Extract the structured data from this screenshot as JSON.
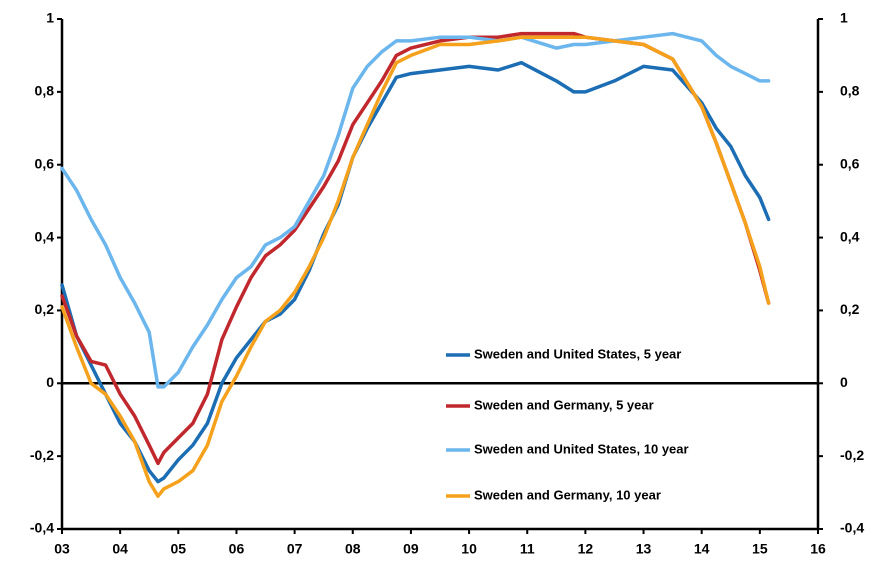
{
  "chart_data": {
    "type": "line",
    "x": [
      3,
      3.25,
      3.5,
      3.75,
      4,
      4.25,
      4.5,
      4.65,
      4.75,
      5,
      5.25,
      5.5,
      5.75,
      6,
      6.25,
      6.5,
      6.75,
      7,
      7.25,
      7.5,
      7.75,
      8,
      8.25,
      8.5,
      8.75,
      9,
      9.5,
      10,
      10.5,
      10.9,
      11.5,
      11.8,
      12,
      12.5,
      13,
      13.5,
      14,
      14.25,
      14.5,
      14.75,
      15,
      15.15
    ],
    "series": [
      {
        "name": "Sweden and United States, 5 year",
        "color": "#1b6db4",
        "values": [
          0.27,
          0.13,
          0.05,
          -0.03,
          -0.11,
          -0.16,
          -0.24,
          -0.27,
          -0.26,
          -0.21,
          -0.17,
          -0.11,
          0.0,
          0.07,
          0.12,
          0.17,
          0.19,
          0.23,
          0.31,
          0.41,
          0.49,
          0.62,
          0.7,
          0.77,
          0.84,
          0.85,
          0.86,
          0.87,
          0.86,
          0.88,
          0.83,
          0.8,
          0.8,
          0.83,
          0.87,
          0.86,
          0.77,
          0.7,
          0.65,
          0.57,
          0.51,
          0.45
        ]
      },
      {
        "name": "Sweden and Germany, 5 year",
        "color": "#c0282d",
        "values": [
          0.24,
          0.13,
          0.06,
          0.05,
          -0.03,
          -0.09,
          -0.17,
          -0.22,
          -0.19,
          -0.15,
          -0.11,
          -0.03,
          0.12,
          0.21,
          0.29,
          0.35,
          0.38,
          0.42,
          0.48,
          0.54,
          0.61,
          0.71,
          0.77,
          0.83,
          0.9,
          0.92,
          0.94,
          0.95,
          0.95,
          0.96,
          0.96,
          0.96,
          0.95,
          0.94,
          0.93,
          0.89,
          0.76,
          0.66,
          0.55,
          0.44,
          0.31,
          0.22
        ]
      },
      {
        "name": "Sweden and United States, 10 year",
        "color": "#6cb6ee",
        "values": [
          0.59,
          0.53,
          0.45,
          0.38,
          0.29,
          0.22,
          0.14,
          -0.01,
          -0.01,
          0.03,
          0.1,
          0.16,
          0.23,
          0.29,
          0.32,
          0.38,
          0.4,
          0.43,
          0.5,
          0.57,
          0.68,
          0.81,
          0.87,
          0.91,
          0.94,
          0.94,
          0.95,
          0.95,
          0.94,
          0.95,
          0.92,
          0.93,
          0.93,
          0.94,
          0.95,
          0.96,
          0.94,
          0.9,
          0.87,
          0.85,
          0.83,
          0.83
        ]
      },
      {
        "name": "Sweden and Germany, 10 year",
        "color": "#f5a11c",
        "values": [
          0.21,
          0.1,
          0.0,
          -0.03,
          -0.09,
          -0.16,
          -0.27,
          -0.31,
          -0.29,
          -0.27,
          -0.24,
          -0.17,
          -0.05,
          0.02,
          0.1,
          0.17,
          0.2,
          0.25,
          0.32,
          0.4,
          0.5,
          0.62,
          0.71,
          0.8,
          0.88,
          0.9,
          0.93,
          0.93,
          0.94,
          0.95,
          0.95,
          0.95,
          0.95,
          0.94,
          0.93,
          0.89,
          0.76,
          0.66,
          0.55,
          0.44,
          0.32,
          0.22
        ]
      }
    ],
    "xlim": [
      3,
      16
    ],
    "xticks": [
      {
        "value": 3,
        "label": "03"
      },
      {
        "value": 4,
        "label": "04"
      },
      {
        "value": 5,
        "label": "05"
      },
      {
        "value": 6,
        "label": "06"
      },
      {
        "value": 7,
        "label": "07"
      },
      {
        "value": 8,
        "label": "08"
      },
      {
        "value": 9,
        "label": "09"
      },
      10,
      11,
      12,
      13,
      14,
      15,
      16
    ],
    "ylim": [
      -0.4,
      1
    ],
    "yticks": [
      {
        "value": -0.4,
        "label": "-0,4"
      },
      {
        "value": -0.2,
        "label": "-0,2"
      },
      0,
      {
        "value": 0.2,
        "label": "0,2"
      },
      {
        "value": 0.4,
        "label": "0,4"
      },
      {
        "value": 0.6,
        "label": "0,6"
      },
      {
        "value": 0.8,
        "label": "0,8"
      },
      1
    ],
    "y2lim": [
      -0.4,
      1
    ],
    "y2ticks": [
      {
        "value": -0.4,
        "label": "-0,4"
      },
      {
        "value": -0.2,
        "label": "-0,2"
      },
      0,
      {
        "value": 0.2,
        "label": "0,2"
      },
      {
        "value": 0.4,
        "label": "0,4"
      },
      {
        "value": 0.6,
        "label": "0,6"
      },
      {
        "value": 0.8,
        "label": "0,8"
      },
      1
    ],
    "grid": false
  }
}
